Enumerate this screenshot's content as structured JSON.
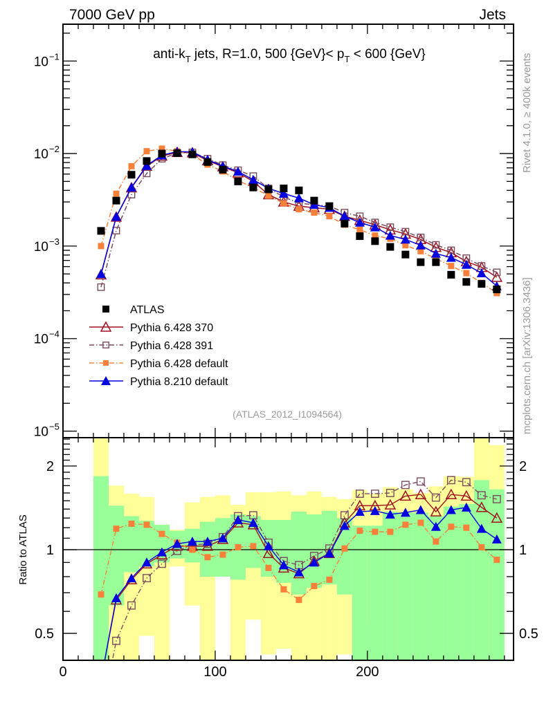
{
  "header": {
    "left": "7000 GeV pp",
    "right": "Jets"
  },
  "side_labels": {
    "top": "Rivet 4.1.0, ≥ 400k events",
    "bottom": "mcplots.cern.ch [arXiv:1306.3436]"
  },
  "chart_data": [
    {
      "type": "scatter",
      "panel": "main",
      "title": "anti-k_T jets, R=1.0, 500 {GeV}< p_T < 600 {GeV}",
      "title_parts": {
        "pre": "anti-k",
        "sub1": "T",
        "mid": " jets, R=1.0, 500 {GeV}< p",
        "sub2": "T",
        "post": " < 600 {GeV}"
      },
      "analysis_label": "(ATLAS_2012_I1094564)",
      "xlabel": "",
      "ylabel": "",
      "xlim": [
        0,
        296
      ],
      "ylim": [
        8.5e-06,
        0.25
      ],
      "yscale": "log",
      "ytick_labels": [
        {
          "value": 0.1,
          "base": "10",
          "exp": "−1"
        },
        {
          "value": 0.01,
          "base": "10",
          "exp": "−2"
        },
        {
          "value": 0.001,
          "base": "10",
          "exp": "−3"
        },
        {
          "value": 0.0001,
          "base": "10",
          "exp": "−4"
        },
        {
          "value": 1e-05,
          "base": "10",
          "exp": "−5"
        }
      ],
      "legend_position": "middle-left",
      "x": [
        25,
        35,
        45,
        55,
        65,
        75,
        85,
        95,
        105,
        115,
        125,
        135,
        145,
        155,
        165,
        175,
        185,
        195,
        205,
        215,
        225,
        235,
        245,
        255,
        265,
        275,
        285
      ],
      "series": [
        {
          "name": "ATLAS",
          "color": "#000000",
          "marker": "filled-square",
          "line": "none",
          "values": [
            0.00146,
            0.0031,
            0.0059,
            0.0083,
            0.01,
            0.0101,
            0.0098,
            0.0081,
            0.0067,
            0.005,
            0.0043,
            0.0041,
            0.0042,
            0.004,
            0.0031,
            0.0027,
            0.00175,
            0.00128,
            0.00113,
            0.00098,
            0.00081,
            0.00067,
            0.00067,
            0.00049,
            0.00041,
            0.00039,
            0.00034
          ]
        },
        {
          "name": "Pythia 6.428 370",
          "color": "#a0101e",
          "marker": "open-triangle",
          "line": "solid",
          "values": [
            0.00049,
            0.00206,
            0.00427,
            0.0073,
            0.0094,
            0.0103,
            0.0102,
            0.0084,
            0.0072,
            0.0062,
            0.005,
            0.0036,
            0.003,
            0.0027,
            0.0026,
            0.0025,
            0.0021,
            0.0019,
            0.0017,
            0.0015,
            0.00135,
            0.00118,
            0.00097,
            0.00085,
            0.00068,
            0.00059,
            0.00046
          ]
        },
        {
          "name": "Pythia 6.428 391",
          "color": "#7a4a5e",
          "marker": "open-square",
          "line": "dashdot",
          "values": [
            0.00036,
            0.00147,
            0.0036,
            0.0061,
            0.0088,
            0.0101,
            0.0103,
            0.0088,
            0.0075,
            0.0066,
            0.0057,
            0.0042,
            0.0034,
            0.0029,
            0.0028,
            0.0027,
            0.0023,
            0.0021,
            0.0018,
            0.0016,
            0.00143,
            0.00124,
            0.00103,
            0.0009,
            0.00074,
            0.00061,
            0.00052
          ]
        },
        {
          "name": "Pythia 6.428 default",
          "color": "#f7813a",
          "marker": "filled-square",
          "line": "dashdot",
          "values": [
            0.001,
            0.00368,
            0.0073,
            0.0106,
            0.0113,
            0.0106,
            0.0098,
            0.0076,
            0.0064,
            0.0051,
            0.0043,
            0.0035,
            0.0029,
            0.0025,
            0.0023,
            0.0021,
            0.0017,
            0.0015,
            0.0013,
            0.0012,
            0.00102,
            0.00088,
            0.00073,
            0.00061,
            0.00051,
            0.0004,
            0.00031
          ]
        },
        {
          "name": "Pythia 8.210 default",
          "color": "#0000e0",
          "marker": "filled-triangle",
          "line": "solid",
          "values": [
            0.0005,
            0.00208,
            0.00432,
            0.0074,
            0.0096,
            0.0105,
            0.0104,
            0.0086,
            0.0073,
            0.0064,
            0.0052,
            0.0042,
            0.0037,
            0.0033,
            0.0028,
            0.0026,
            0.0021,
            0.0018,
            0.0016,
            0.0013,
            0.00118,
            0.00102,
            0.00083,
            0.00075,
            0.00063,
            0.00051,
            0.00037
          ]
        }
      ]
    },
    {
      "type": "scatter",
      "panel": "ratio",
      "ylabel": "Ratio to ATLAS",
      "xlim": [
        0,
        296
      ],
      "ylim": [
        0.4,
        2.53
      ],
      "yscale": "log",
      "reference_line": 1,
      "xtick_labels": [
        0,
        100,
        200
      ],
      "ytick_labels": [
        0.5,
        1,
        2
      ],
      "bins": [
        [
          20,
          30
        ],
        [
          30,
          40
        ],
        [
          40,
          50
        ],
        [
          50,
          60
        ],
        [
          60,
          70
        ],
        [
          70,
          80
        ],
        [
          80,
          90
        ],
        [
          90,
          100
        ],
        [
          100,
          110
        ],
        [
          110,
          120
        ],
        [
          120,
          130
        ],
        [
          130,
          140
        ],
        [
          140,
          150
        ],
        [
          150,
          160
        ],
        [
          160,
          170
        ],
        [
          170,
          180
        ],
        [
          180,
          190
        ],
        [
          190,
          200
        ],
        [
          200,
          210
        ],
        [
          210,
          220
        ],
        [
          220,
          230
        ],
        [
          230,
          240
        ],
        [
          240,
          250
        ],
        [
          250,
          260
        ],
        [
          260,
          270
        ],
        [
          270,
          280
        ],
        [
          280,
          290
        ]
      ],
      "band_inner_green": {
        "lo": [
          0.4,
          0.63,
          0.83,
          0.87,
          0.9,
          0.93,
          0.9,
          0.8,
          0.8,
          0.78,
          0.86,
          0.8,
          0.76,
          0.69,
          0.73,
          0.75,
          0.69,
          0.4,
          0.4,
          0.4,
          0.4,
          0.4,
          0.4,
          0.4,
          0.4,
          0.4,
          0.4
        ],
        "hi": [
          1.84,
          1.44,
          1.32,
          1.27,
          1.23,
          1.17,
          1.19,
          1.26,
          1.3,
          1.34,
          1.32,
          1.28,
          1.28,
          1.37,
          1.34,
          1.38,
          1.3,
          1.22,
          1.22,
          1.37,
          1.36,
          1.36,
          1.32,
          1.43,
          1.46,
          1.78,
          1.65
        ]
      },
      "band_outer_yellow": {
        "lo": [
          0.4,
          0.4,
          0.4,
          0.49,
          0.4,
          0.87,
          0.63,
          0.4,
          0.85,
          0.4,
          0.56,
          0.42,
          0.44,
          0.4,
          0.4,
          0.4,
          0.42,
          0.55,
          0.56,
          0.41,
          0.4,
          0.4,
          0.4,
          0.4,
          0.43,
          0.4,
          0.4
        ],
        "hi": [
          2.53,
          1.7,
          1.59,
          1.55,
          1.21,
          1.18,
          1.48,
          1.55,
          1.57,
          1.45,
          1.61,
          1.61,
          1.62,
          1.57,
          1.62,
          1.55,
          1.52,
          1.64,
          1.59,
          1.68,
          1.65,
          1.6,
          1.69,
          1.84,
          1.83,
          2.53,
          2.38
        ]
      },
      "series": [
        {
          "name": "Pythia 6.428 370",
          "values": [
            0.34,
            0.66,
            0.78,
            0.89,
            0.96,
            1.03,
            1.03,
            1.03,
            1.09,
            1.25,
            1.23,
            0.97,
            0.86,
            0.82,
            0.91,
            0.97,
            1.25,
            1.44,
            1.44,
            1.45,
            1.56,
            1.58,
            1.37,
            1.58,
            1.56,
            1.42,
            1.3
          ]
        },
        {
          "name": "Pythia 6.428 391",
          "values": [
            0.25,
            0.47,
            0.63,
            0.79,
            0.89,
            0.99,
            1.04,
            1.05,
            1.11,
            1.32,
            1.33,
            1.06,
            0.91,
            0.88,
            0.95,
            1.01,
            1.33,
            1.59,
            1.59,
            1.6,
            1.71,
            1.76,
            1.54,
            1.78,
            1.75,
            1.57,
            1.52
          ]
        },
        {
          "name": "Pythia 6.428 default",
          "values": [
            0.69,
            1.19,
            1.24,
            1.23,
            1.14,
            1.06,
            1.0,
            0.94,
            0.96,
            1.02,
            1.03,
            0.86,
            0.72,
            0.66,
            0.74,
            0.78,
            1.01,
            1.17,
            1.16,
            1.16,
            1.23,
            1.25,
            1.07,
            1.21,
            1.2,
            1.02,
            0.92
          ]
        },
        {
          "name": "Pythia 8.210 default",
          "values": [
            0.34,
            0.67,
            0.79,
            0.9,
            0.98,
            1.05,
            1.07,
            1.07,
            1.1,
            1.28,
            1.25,
            1.03,
            0.88,
            0.83,
            0.9,
            0.97,
            1.22,
            1.37,
            1.38,
            1.34,
            1.36,
            1.39,
            1.21,
            1.39,
            1.42,
            1.19,
            1.09
          ]
        }
      ]
    }
  ]
}
